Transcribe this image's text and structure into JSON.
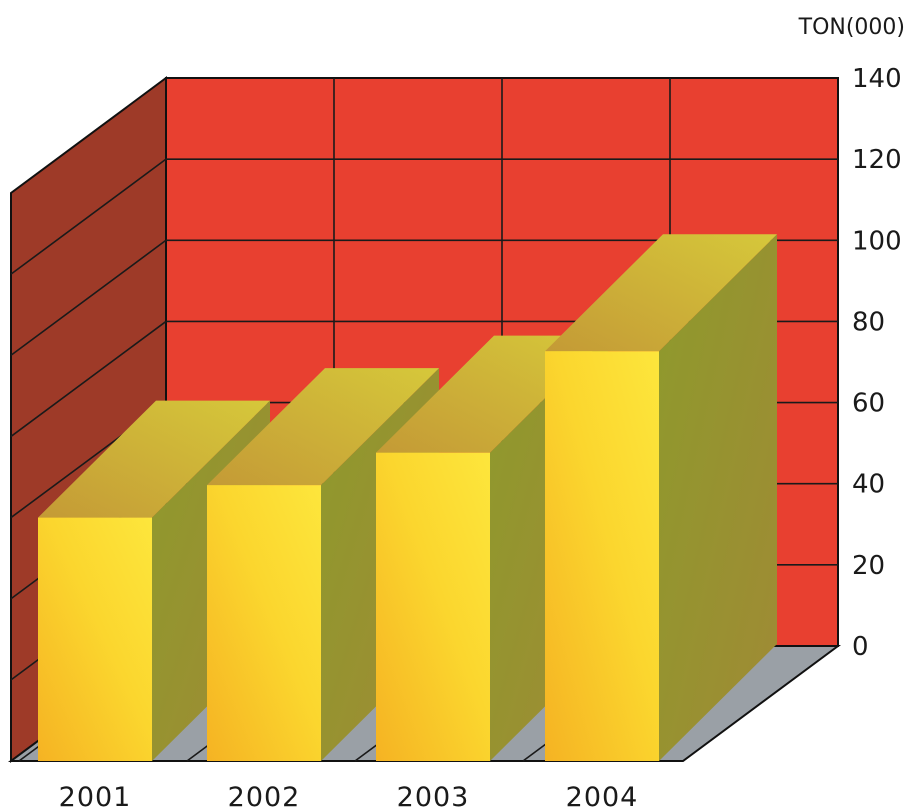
{
  "chart_data": {
    "type": "bar",
    "categories": [
      "2001",
      "2002",
      "2003",
      "2004"
    ],
    "series": [
      {
        "values": [
          60,
          68,
          76,
          101
        ]
      }
    ],
    "ylabel": "TON(000)",
    "ylim": [
      0,
      140
    ],
    "yticks": [
      0,
      20,
      40,
      60,
      80,
      100,
      120,
      140
    ],
    "grid": true,
    "three_d": true,
    "colors": {
      "back_wall": "#e84030",
      "side_wall": "#9e3a28",
      "floor": "#9aa0a6",
      "bar_front": "#f7cc2a",
      "bar_side": "#8f9a2c",
      "bar_top": "#c9b43a"
    }
  }
}
